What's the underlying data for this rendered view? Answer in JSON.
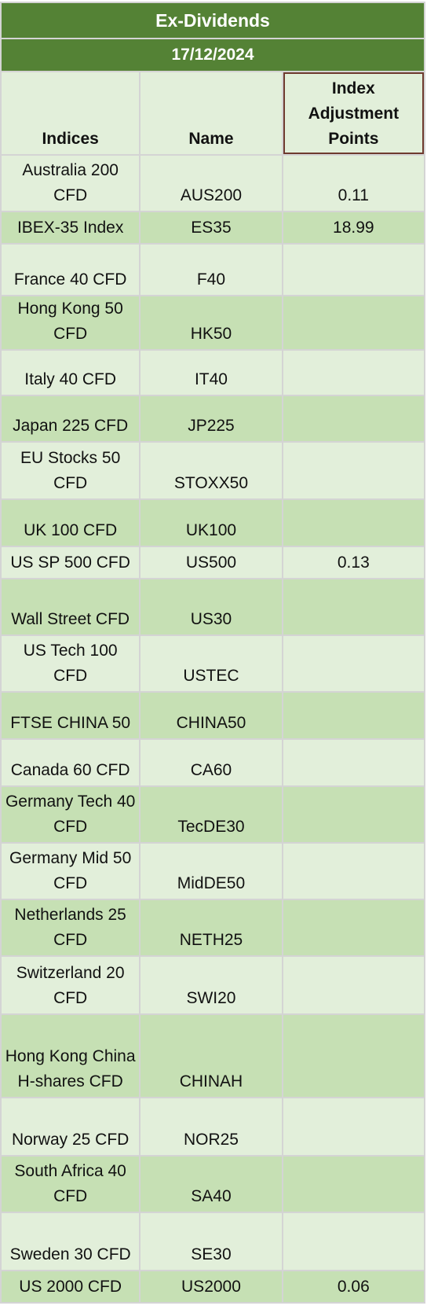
{
  "header": {
    "title": "Ex-Dividends",
    "date": "17/12/2024"
  },
  "table": {
    "columns": [
      "Indices",
      "Name",
      "Index Adjustment Points"
    ],
    "rows": [
      {
        "index": "Australia 200 CFD",
        "name": "AUS200",
        "points": 0.11
      },
      {
        "index": "IBEX-35 Index",
        "name": "ES35",
        "points": 18.99
      },
      {
        "index": "France 40 CFD",
        "name": "F40"
      },
      {
        "index": "Hong Kong 50 CFD",
        "name": "HK50"
      },
      {
        "index": "Italy 40 CFD",
        "name": "IT40"
      },
      {
        "index": "Japan 225 CFD",
        "name": "JP225"
      },
      {
        "index": "EU Stocks 50 CFD",
        "name": "STOXX50"
      },
      {
        "index": "UK 100 CFD",
        "name": "UK100"
      },
      {
        "index": "US SP 500 CFD",
        "name": "US500",
        "points": 0.13
      },
      {
        "index": "Wall Street CFD",
        "name": "US30"
      },
      {
        "index": "US Tech 100 CFD",
        "name": "USTEC"
      },
      {
        "index": "FTSE CHINA 50",
        "name": "CHINA50"
      },
      {
        "index": "Canada 60 CFD",
        "name": "CA60"
      },
      {
        "index": "Germany Tech 40 CFD",
        "name": "TecDE30"
      },
      {
        "index": "Germany Mid 50 CFD",
        "name": "MidDE50"
      },
      {
        "index": "Netherlands 25 CFD",
        "name": "NETH25"
      },
      {
        "index": "Switzerland 20 CFD",
        "name": "SWI20"
      },
      {
        "index": "Hong Kong China H-shares CFD",
        "name": "CHINAH"
      },
      {
        "index": "Norway 25 CFD",
        "name": "NOR25"
      },
      {
        "index": "South Africa 40 CFD",
        "name": "SA40"
      },
      {
        "index": "Sweden 30 CFD",
        "name": "SE30"
      },
      {
        "index": "US 2000 CFD",
        "name": "US2000",
        "points": 0.06
      }
    ]
  }
}
